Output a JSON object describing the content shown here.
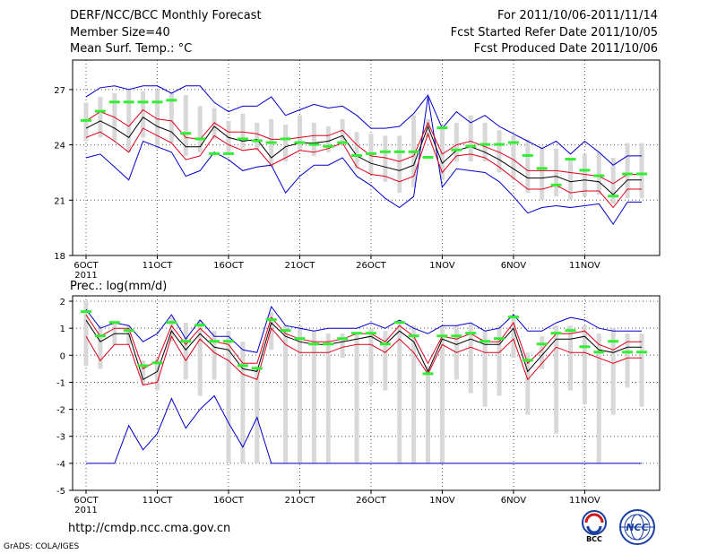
{
  "header": {
    "title": "DERF/NCC/BCC Monthly Forecast",
    "member_size": "Member Size=40",
    "variable": "Mean Surf. Temp.: °C",
    "period": "For 2011/10/06-2011/11/14",
    "started": "Fcst Started Refer Date 2011/10/05",
    "produced": "Fcst Produced Date 2011/10/06"
  },
  "footer": {
    "url": "http://cmdp.ncc.cma.gov.cn",
    "credit": "GrADS: COLA/IGES",
    "logo_bcc": "BCC",
    "logo_ncc": "NCC"
  },
  "colors": {
    "box": "#d8d8d8",
    "envelope": "#0000cc",
    "spread": "#e0001b",
    "mean": "#000000",
    "median": "#33ee33",
    "grid": "#555555"
  },
  "chart_data": [
    {
      "type": "line",
      "title": "Mean Surf. Temp.: °C",
      "ylim": [
        18,
        28.6
      ],
      "yticks": [
        18,
        21,
        24,
        27
      ],
      "ytick_labels": [
        "18",
        "21",
        "24",
        "27"
      ],
      "x": [
        0,
        1,
        2,
        3,
        4,
        5,
        6,
        7,
        8,
        9,
        10,
        11,
        12,
        13,
        14,
        15,
        16,
        17,
        18,
        19,
        20,
        21,
        22,
        23,
        24,
        25,
        26,
        27,
        28,
        29,
        30,
        31,
        32,
        33,
        34,
        35,
        36,
        37,
        38,
        39
      ],
      "xticks": [
        0,
        5,
        10,
        15,
        20,
        25,
        30,
        35
      ],
      "xtick_labels": [
        "6OCT",
        "11OCT",
        "16OCT",
        "21OCT",
        "26OCT",
        "1NOV",
        "6NOV",
        "11NOV"
      ],
      "year_label": "2011",
      "series": [
        {
          "name": "max",
          "values": [
            23.3,
            23.5,
            22.8,
            22.1,
            24.2,
            23.9,
            23.6,
            22.3,
            22.6,
            23.6,
            23.2,
            22.6,
            22.8,
            22.9,
            21.4,
            22.3,
            22.9,
            22.9,
            23.3,
            22.3,
            21.8,
            21.1,
            20.6,
            21.2,
            26.6,
            21.7,
            22.7,
            22.6,
            22.5,
            22.0,
            21.2,
            20.3,
            20.6,
            20.7,
            20.6,
            20.7,
            20.8,
            19.7,
            20.9,
            20.9
          ]
        },
        {
          "name": "p25",
          "values": [
            24.4,
            24.7,
            24.2,
            23.6,
            24.9,
            24.5,
            24.1,
            23.2,
            23.4,
            24.5,
            24.0,
            23.7,
            23.8,
            22.9,
            23.3,
            23.7,
            23.6,
            23.8,
            24.1,
            22.8,
            22.4,
            22.3,
            22.0,
            22.3,
            24.6,
            22.5,
            23.4,
            23.5,
            23.3,
            22.8,
            22.2,
            21.6,
            21.6,
            21.8,
            21.4,
            21.5,
            21.5,
            20.6,
            21.6,
            21.6
          ]
        },
        {
          "name": "mean",
          "values": [
            24.9,
            25.3,
            24.9,
            24.4,
            25.5,
            25.0,
            24.7,
            23.9,
            23.9,
            25.0,
            24.4,
            24.2,
            24.3,
            23.3,
            23.9,
            24.1,
            24.1,
            24.2,
            24.5,
            23.4,
            23.0,
            22.8,
            22.6,
            22.9,
            25.0,
            23.0,
            23.7,
            23.9,
            23.6,
            23.2,
            22.7,
            22.2,
            22.2,
            22.3,
            22.0,
            22.1,
            22.0,
            21.3,
            22.1,
            22.1
          ]
        },
        {
          "name": "p75",
          "values": [
            25.3,
            25.8,
            25.5,
            25.0,
            25.9,
            25.4,
            25.3,
            24.4,
            24.3,
            25.2,
            24.7,
            24.7,
            24.6,
            24.3,
            24.3,
            24.4,
            24.5,
            24.5,
            24.8,
            24.0,
            23.4,
            23.3,
            23.1,
            23.4,
            25.2,
            23.5,
            24.0,
            24.2,
            23.9,
            23.6,
            23.2,
            22.6,
            22.6,
            22.6,
            22.5,
            22.4,
            22.3,
            21.9,
            22.4,
            22.4
          ]
        },
        {
          "name": "min",
          "values": [
            26.6,
            27.1,
            27.2,
            27.0,
            27.2,
            27.2,
            26.8,
            27.2,
            27.2,
            26.3,
            25.8,
            26.1,
            26.1,
            26.6,
            25.6,
            25.9,
            26.2,
            26.0,
            26.1,
            25.6,
            24.9,
            24.9,
            25.0,
            25.7,
            26.7,
            24.9,
            25.8,
            25.2,
            25.6,
            25.0,
            24.6,
            24.2,
            23.8,
            24.2,
            23.5,
            24.2,
            23.6,
            22.9,
            23.4,
            23.4
          ]
        }
      ],
      "boxes": {
        "low": [
          24.2,
          24.4,
          24.2,
          23.6,
          24.4,
          23.8,
          24.1,
          23.4,
          23.6,
          24.3,
          23.6,
          23.8,
          23.7,
          22.8,
          23.1,
          23.7,
          23.4,
          23.6,
          24.1,
          22.7,
          22.4,
          22.0,
          21.4,
          21.7,
          24.4,
          22.1,
          23.1,
          23.1,
          23.1,
          22.5,
          22.1,
          21.4,
          21.0,
          21.2,
          21.0,
          21.2,
          21.3,
          20.8,
          21.1,
          21.1
        ],
        "high": [
          26.3,
          26.6,
          26.8,
          27.0,
          26.9,
          27.0,
          26.8,
          26.7,
          26.1,
          26.0,
          25.3,
          25.7,
          25.2,
          25.4,
          25.1,
          25.6,
          25.2,
          25.0,
          25.4,
          24.7,
          24.6,
          24.5,
          24.5,
          25.6,
          25.4,
          24.9,
          25.2,
          25.6,
          25.2,
          24.8,
          24.5,
          24.3,
          23.9,
          23.8,
          23.3,
          23.5,
          23.6,
          23.3,
          24.1,
          24.1
        ],
        "median": [
          25.3,
          25.8,
          26.3,
          26.3,
          26.3,
          26.3,
          26.4,
          24.6,
          24.3,
          23.5,
          23.5,
          24.3,
          24.2,
          24.1,
          24.3,
          24.1,
          24.0,
          23.9,
          24.1,
          23.4,
          23.5,
          23.6,
          23.6,
          23.6,
          23.3,
          24.9,
          23.7,
          23.9,
          24.0,
          24.0,
          24.1,
          23.4,
          22.7,
          21.8,
          23.2,
          22.6,
          22.3,
          21.2,
          22.4,
          22.4
        ]
      }
    },
    {
      "type": "line",
      "title": "Prec.: log(mm/d)",
      "ylim": [
        -5,
        2.2
      ],
      "yticks": [
        -5,
        -4,
        -3,
        -2,
        -1,
        0,
        1,
        2
      ],
      "ytick_labels": [
        "-5",
        "-4",
        "-3",
        "-2",
        "-1",
        "0",
        "1",
        "2"
      ],
      "x": [
        0,
        1,
        2,
        3,
        4,
        5,
        6,
        7,
        8,
        9,
        10,
        11,
        12,
        13,
        14,
        15,
        16,
        17,
        18,
        19,
        20,
        21,
        22,
        23,
        24,
        25,
        26,
        27,
        28,
        29,
        30,
        31,
        32,
        33,
        34,
        35,
        36,
        37,
        38,
        39
      ],
      "xticks": [
        0,
        5,
        10,
        15,
        20,
        25,
        30,
        35
      ],
      "xtick_labels": [
        "6OCT",
        "11OCT",
        "16OCT",
        "21OCT",
        "26OCT",
        "1NOV",
        "6NOV",
        "11NOV"
      ],
      "year_label": "2011",
      "series": [
        {
          "name": "min",
          "values": [
            -4.0,
            -4.0,
            -4.0,
            -2.6,
            -3.5,
            -2.9,
            -1.6,
            -2.7,
            -2.0,
            -1.5,
            -2.5,
            -3.4,
            -2.3,
            -4.0,
            -4.0,
            -4.0,
            -4.0,
            -4.0,
            -4.0,
            -4.0,
            -4.0,
            -4.0,
            -4.0,
            -4.0,
            -4.0,
            -4.0,
            -4.0,
            -4.0,
            -4.0,
            -4.0,
            -4.0,
            -4.0,
            -4.0,
            -4.0,
            -4.0,
            -4.0,
            -4.0,
            -4.0,
            -4.0,
            -4.0
          ]
        },
        {
          "name": "p25",
          "values": [
            0.7,
            -0.2,
            0.4,
            0.4,
            -1.1,
            -1.0,
            0.7,
            -0.2,
            0.6,
            0.1,
            -0.2,
            -0.7,
            -0.9,
            1.0,
            0.4,
            0.1,
            0.1,
            0.1,
            0.3,
            0.4,
            0.4,
            0.1,
            0.6,
            0.1,
            -0.7,
            0.4,
            0.1,
            0.3,
            0.1,
            0.1,
            0.6,
            -0.9,
            -0.3,
            0.3,
            0.1,
            0.1,
            -0.1,
            -0.3,
            -0.1,
            -0.1
          ]
        },
        {
          "name": "mean",
          "values": [
            1.3,
            0.5,
            0.8,
            0.8,
            -0.9,
            -0.6,
            0.9,
            0.2,
            0.8,
            0.3,
            0.2,
            -0.5,
            -0.6,
            1.2,
            0.7,
            0.5,
            0.4,
            0.4,
            0.5,
            0.6,
            0.7,
            0.4,
            0.9,
            0.5,
            -0.6,
            0.6,
            0.4,
            0.6,
            0.4,
            0.4,
            1.0,
            -0.6,
            0.0,
            0.6,
            0.6,
            0.7,
            0.2,
            0.1,
            0.3,
            0.3
          ]
        },
        {
          "name": "p75",
          "values": [
            1.5,
            0.7,
            1.0,
            1.0,
            -0.5,
            -0.2,
            1.1,
            0.4,
            1.0,
            0.5,
            0.4,
            -0.3,
            -0.3,
            1.4,
            0.8,
            0.6,
            0.5,
            0.5,
            0.6,
            0.8,
            0.8,
            0.5,
            1.1,
            0.7,
            -0.3,
            0.7,
            0.6,
            0.8,
            0.5,
            0.5,
            1.2,
            -0.3,
            0.2,
            0.8,
            0.8,
            0.9,
            0.4,
            0.2,
            0.5,
            0.5
          ]
        },
        {
          "name": "max",
          "values": [
            1.7,
            1.0,
            1.2,
            1.1,
            0.5,
            0.8,
            1.5,
            0.6,
            1.3,
            0.7,
            0.7,
            0.2,
            0.1,
            1.8,
            1.1,
            1.0,
            0.9,
            1.0,
            1.0,
            1.0,
            1.2,
            1.0,
            1.3,
            1.0,
            0.8,
            1.1,
            1.1,
            1.2,
            0.9,
            1.0,
            1.5,
            0.9,
            0.9,
            1.2,
            1.4,
            1.3,
            1.0,
            0.9,
            0.9,
            0.9
          ]
        }
      ],
      "boxes": {
        "low": [
          -0.4,
          -0.5,
          0.4,
          0.4,
          -1.1,
          -1.3,
          0.5,
          -0.9,
          -1.5,
          -0.9,
          -4.0,
          -4.0,
          -4.0,
          0.2,
          -4.0,
          -4.0,
          -4.0,
          -4.0,
          -0.1,
          -4.0,
          -1.1,
          -1.3,
          -4.0,
          -4.0,
          -4.0,
          -4.0,
          -0.9,
          -1.4,
          -1.9,
          -1.5,
          -0.1,
          -2.2,
          -0.5,
          -2.9,
          -1.3,
          -1.8,
          -4.0,
          -2.2,
          -1.2,
          -1.9
        ],
        "high": [
          2.0,
          1.1,
          1.2,
          1.1,
          -0.2,
          -0.1,
          1.4,
          1.2,
          1.3,
          0.9,
          0.9,
          0.5,
          -0.4,
          1.6,
          1.1,
          1.1,
          0.9,
          0.8,
          0.8,
          0.8,
          1.0,
          0.9,
          1.3,
          1.1,
          -0.4,
          1.1,
          1.1,
          1.2,
          0.9,
          1.1,
          1.5,
          0.1,
          0.7,
          1.1,
          1.1,
          1.1,
          0.8,
          1.0,
          0.8,
          0.8
        ],
        "median": [
          1.6,
          0.7,
          1.2,
          0.9,
          -0.4,
          -0.3,
          1.2,
          0.5,
          1.1,
          0.5,
          0.5,
          -0.4,
          -0.5,
          1.3,
          0.9,
          0.6,
          0.4,
          0.4,
          0.6,
          0.8,
          0.8,
          0.4,
          1.2,
          0.7,
          -0.7,
          0.7,
          0.7,
          0.8,
          0.5,
          0.6,
          1.4,
          -0.2,
          0.4,
          0.8,
          0.9,
          0.3,
          0.1,
          0.5,
          0.1,
          0.1
        ]
      }
    }
  ]
}
